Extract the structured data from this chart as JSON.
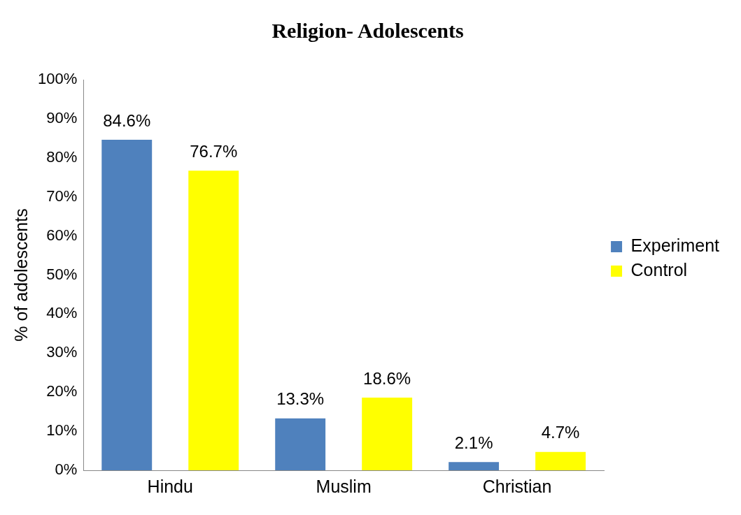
{
  "chart_data": {
    "type": "bar",
    "title": "Religion- Adolescents",
    "ylabel": "% of adolescents",
    "categories": [
      "Hindu",
      "Muslim",
      "Christian"
    ],
    "series": [
      {
        "name": "Experiment",
        "color": "#4f81bd",
        "values": [
          84.6,
          13.3,
          2.1
        ],
        "value_labels": [
          "84.6%",
          "13.3%",
          "2.1%"
        ]
      },
      {
        "name": "Control",
        "color": "#ffff00",
        "values": [
          76.7,
          18.6,
          4.7
        ],
        "value_labels": [
          "76.7%",
          "18.6%",
          "4.7%"
        ]
      }
    ],
    "ylim": [
      0,
      100
    ],
    "yticks": [
      {
        "value": 0,
        "label": "0%"
      },
      {
        "value": 10,
        "label": "10%"
      },
      {
        "value": 20,
        "label": "20%"
      },
      {
        "value": 30,
        "label": "30%"
      },
      {
        "value": 40,
        "label": "40%"
      },
      {
        "value": 50,
        "label": "50%"
      },
      {
        "value": 60,
        "label": "60%"
      },
      {
        "value": 70,
        "label": "70%"
      },
      {
        "value": 80,
        "label": "80%"
      },
      {
        "value": 90,
        "label": "90%"
      },
      {
        "value": 100,
        "label": "100%"
      }
    ],
    "grid": false,
    "legend": "right"
  }
}
